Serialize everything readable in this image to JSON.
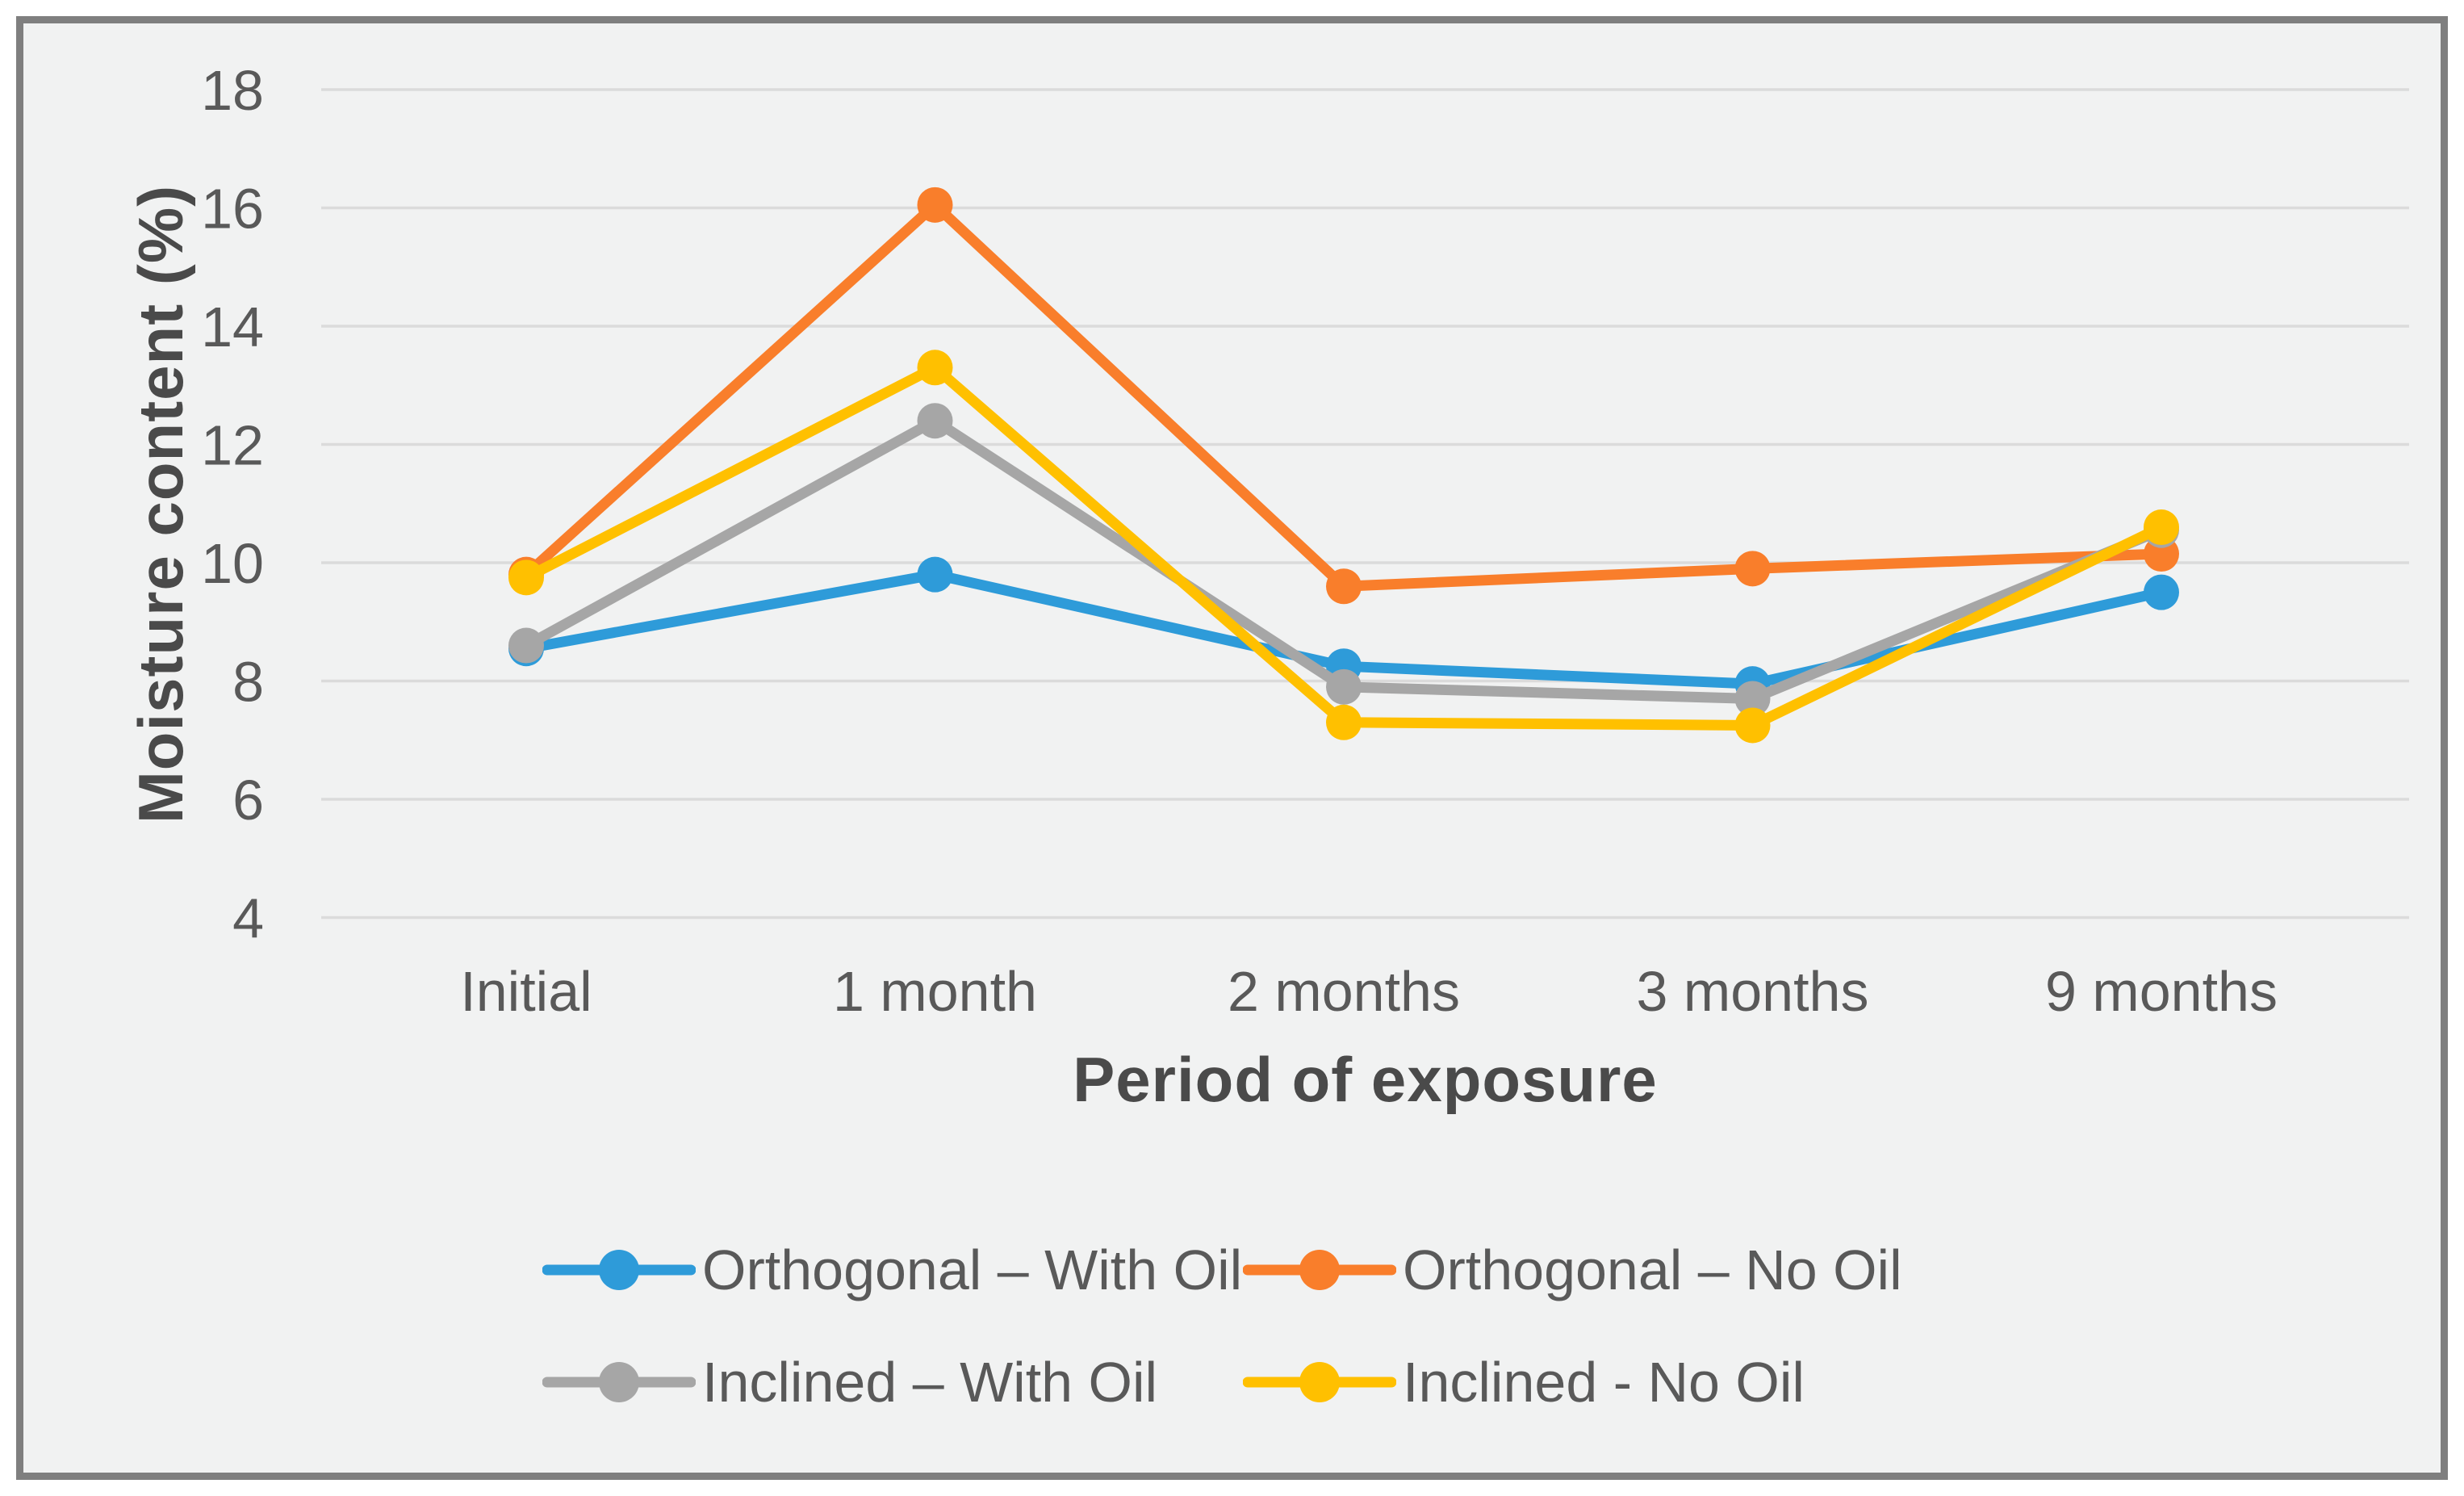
{
  "chart_data": {
    "type": "line",
    "title": "",
    "xlabel": "Period of exposure",
    "ylabel": "Moisture content (%)",
    "categories": [
      "Initial",
      "1 month",
      "2 months",
      "3 months",
      "9 months"
    ],
    "y_ticks": [
      18,
      16,
      14,
      12,
      10,
      8,
      6,
      4
    ],
    "ylim": [
      4,
      18
    ],
    "grid": true,
    "legend_position": "bottom",
    "marker_style": "circle",
    "colors": {
      "plot_background": "#f1f2f2",
      "frame_border": "#7f7f7f",
      "gridline": "#dbdbdb",
      "tick_text": "#595959",
      "axis_title_text": "#4a4a4a"
    },
    "series": [
      {
        "name": "Orthogonal – With Oil",
        "color": "#2e9bd9",
        "values": [
          8.55,
          9.8,
          8.25,
          7.95,
          9.5
        ]
      },
      {
        "name": "Orthogonal – No Oil",
        "color": "#f97e2b",
        "values": [
          9.8,
          16.05,
          9.6,
          9.9,
          10.15
        ]
      },
      {
        "name": "Inclined – With Oil",
        "color": "#a6a6a6",
        "values": [
          8.6,
          12.4,
          7.9,
          7.7,
          10.55
        ]
      },
      {
        "name": "Inclined - No Oil",
        "color": "#ffc000",
        "values": [
          9.75,
          13.3,
          7.3,
          7.25,
          10.6
        ]
      }
    ]
  }
}
